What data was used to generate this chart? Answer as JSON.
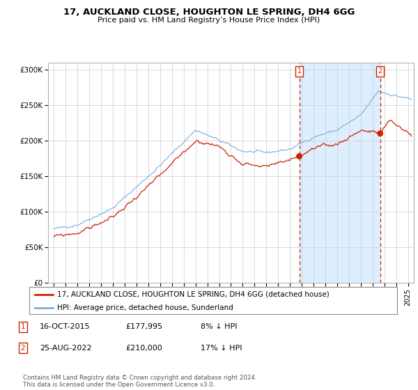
{
  "title": "17, AUCKLAND CLOSE, HOUGHTON LE SPRING, DH4 6GG",
  "subtitle": "Price paid vs. HM Land Registry’s House Price Index (HPI)",
  "ylabel_ticks": [
    "£0",
    "£50K",
    "£100K",
    "£150K",
    "£200K",
    "£250K",
    "£300K"
  ],
  "ytick_values": [
    0,
    50000,
    100000,
    150000,
    200000,
    250000,
    300000
  ],
  "ylim": [
    0,
    310000
  ],
  "hpi_color": "#7aaddc",
  "price_color": "#cc2200",
  "bg_shade_color": "#ddeeff",
  "grid_color": "#cccccc",
  "sale1_date": 2015.79,
  "sale1_price": 177995,
  "sale2_date": 2022.65,
  "sale2_price": 210000,
  "legend_price_label": "17, AUCKLAND CLOSE, HOUGHTON LE SPRING, DH4 6GG (detached house)",
  "legend_hpi_label": "HPI: Average price, detached house, Sunderland",
  "footnote": "Contains HM Land Registry data © Crown copyright and database right 2024.\nThis data is licensed under the Open Government Licence v3.0.",
  "xmin": 1994.5,
  "xmax": 2025.5,
  "fig_width": 6.0,
  "fig_height": 5.6,
  "dpi": 100
}
